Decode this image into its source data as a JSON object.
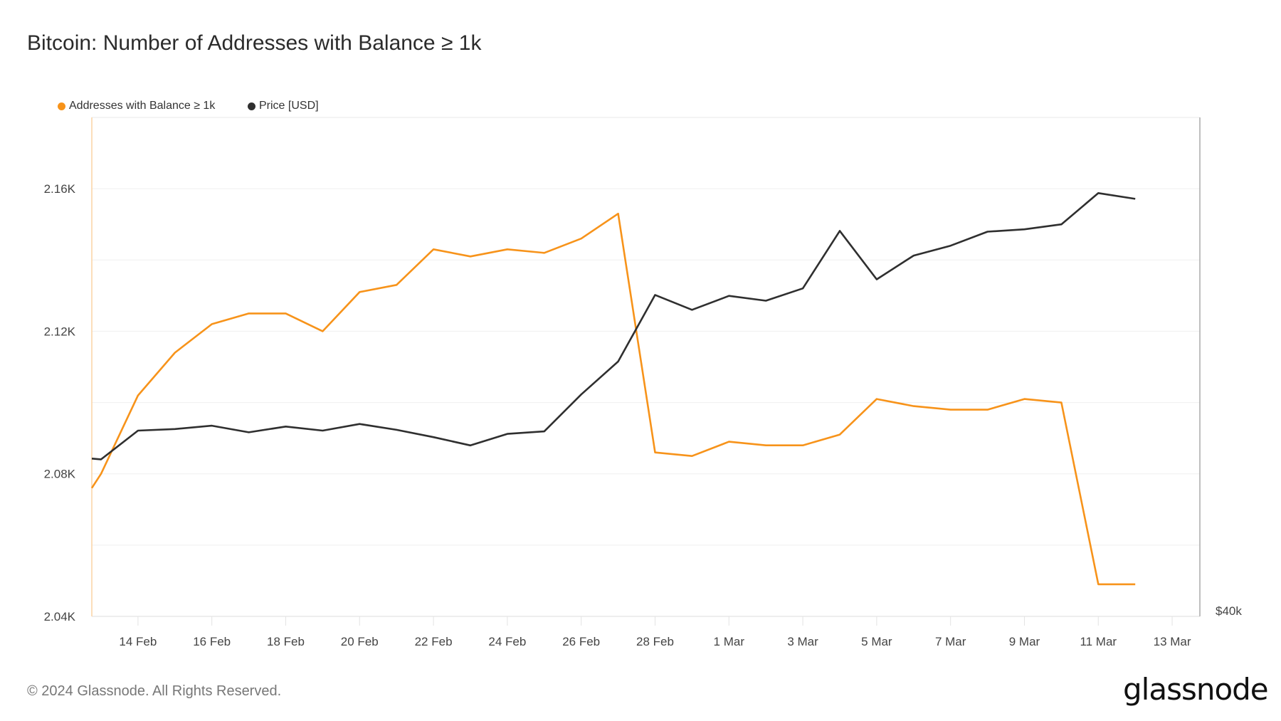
{
  "chart_data": {
    "type": "line",
    "title": "Bitcoin: Number of Addresses with Balance ≥ 1k",
    "xlabel": "",
    "ylabel": "",
    "x_tick_labels": [
      "14 Feb",
      "16 Feb",
      "18 Feb",
      "20 Feb",
      "22 Feb",
      "24 Feb",
      "26 Feb",
      "28 Feb",
      "1 Mar",
      "3 Mar",
      "5 Mar",
      "7 Mar",
      "9 Mar",
      "11 Mar",
      "13 Mar"
    ],
    "x_start_date": "13 Feb",
    "x_day_offsets": [
      -0.25,
      0,
      1,
      2,
      3,
      4,
      5,
      6,
      7,
      8,
      9,
      10,
      11,
      12,
      13,
      14,
      15,
      16,
      17,
      18,
      19,
      20,
      21,
      22,
      23,
      24,
      25,
      26,
      27,
      28
    ],
    "xlim_days": [
      -0.25,
      29.75
    ],
    "y_left": {
      "ticks": [
        2040,
        2080,
        2120,
        2160
      ],
      "tick_labels": [
        "2.04K",
        "2.08K",
        "2.12K",
        "2.16K"
      ],
      "ylim": [
        2040,
        2180
      ],
      "grid_step": 20
    },
    "y_right": {
      "tick_labels": [
        "$40k"
      ],
      "ticks": [
        40000
      ],
      "ylim": [
        40000,
        78000
      ]
    },
    "grid": true,
    "legend_position": "top-left",
    "series": [
      {
        "name": "Addresses with Balance ≥ 1k",
        "color": "#f7931a",
        "axis": "left",
        "values": [
          2076,
          2080,
          2102,
          2114,
          2122,
          2125,
          2125,
          2120,
          2131,
          2133,
          2143,
          2141,
          2143,
          2142,
          2146,
          2153,
          2086,
          2085,
          2089,
          2088,
          2088,
          2091,
          2101,
          2099,
          2098,
          2098,
          2101,
          2100,
          2049,
          2049
        ]
      },
      {
        "name": "Price [USD]",
        "color": "#2f2f2f",
        "axis": "right",
        "values": [
          52020,
          51960,
          54150,
          54270,
          54520,
          54020,
          54460,
          54150,
          54650,
          54210,
          53650,
          53020,
          53900,
          54090,
          56900,
          59410,
          64480,
          63350,
          64410,
          64040,
          64980,
          69360,
          65670,
          67480,
          68230,
          69300,
          69480,
          69860,
          72240,
          71800
        ]
      }
    ]
  },
  "footer": {
    "copyright": "© 2024 Glassnode. All Rights Reserved.",
    "logo": "glassnode"
  }
}
